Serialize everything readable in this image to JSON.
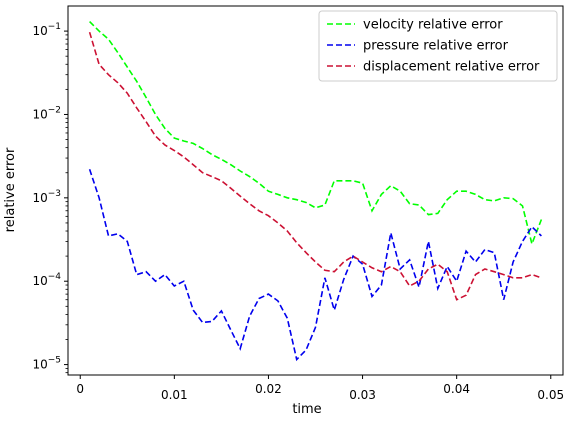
{
  "chart_data": {
    "type": "line",
    "title": "",
    "xlabel": "time",
    "ylabel": "relative error",
    "xscale": "linear",
    "yscale": "log",
    "xlim": [
      -0.0013,
      0.0513
    ],
    "ylim": [
      7.5e-06,
      0.2
    ],
    "grid": false,
    "legend_position": "top-right",
    "x_ticks": [
      {
        "value": 0,
        "label": "0"
      },
      {
        "value": 0.01,
        "label": "0.01"
      },
      {
        "value": 0.02,
        "label": "0.02"
      },
      {
        "value": 0.03,
        "label": "0.03"
      },
      {
        "value": 0.04,
        "label": "0.04"
      },
      {
        "value": 0.05,
        "label": "0.05"
      }
    ],
    "y_ticks": [
      {
        "value": 0.1,
        "base": "10",
        "exp": "−1"
      },
      {
        "value": 0.01,
        "base": "10",
        "exp": "−2"
      },
      {
        "value": 0.001,
        "base": "10",
        "exp": "−3"
      },
      {
        "value": 0.0001,
        "base": "10",
        "exp": "−4"
      },
      {
        "value": 1e-05,
        "base": "10",
        "exp": "−5"
      }
    ],
    "x": [
      0.001,
      0.002,
      0.003,
      0.004,
      0.005,
      0.006,
      0.007,
      0.008,
      0.009,
      0.01,
      0.011,
      0.012,
      0.013,
      0.014,
      0.015,
      0.016,
      0.017,
      0.018,
      0.019,
      0.02,
      0.021,
      0.022,
      0.023,
      0.024,
      0.025,
      0.026,
      0.027,
      0.028,
      0.029,
      0.03,
      0.031,
      0.032,
      0.033,
      0.034,
      0.035,
      0.036,
      0.037,
      0.038,
      0.039,
      0.04,
      0.041,
      0.042,
      0.043,
      0.044,
      0.045,
      0.046,
      0.047,
      0.048,
      0.049
    ],
    "series": [
      {
        "name": "velocity relative error",
        "color": "#00ff00",
        "values": [
          0.13,
          0.1,
          0.08,
          0.055,
          0.037,
          0.025,
          0.016,
          0.01,
          0.0068,
          0.0052,
          0.0048,
          0.0045,
          0.0039,
          0.0033,
          0.0029,
          0.0025,
          0.0021,
          0.0018,
          0.0015,
          0.0012,
          0.0011,
          0.001,
          0.00095,
          0.00088,
          0.00076,
          0.00082,
          0.0016,
          0.0016,
          0.0016,
          0.0015,
          0.0007,
          0.0011,
          0.0014,
          0.0012,
          0.00085,
          0.00082,
          0.00063,
          0.00065,
          0.00095,
          0.0012,
          0.0012,
          0.0011,
          0.00095,
          0.00092,
          0.001,
          0.00098,
          0.0008,
          0.00028,
          0.00055
        ]
      },
      {
        "name": "pressure relative error",
        "color": "#0000ee",
        "values": [
          0.0022,
          0.001,
          0.00035,
          0.00037,
          0.0003,
          0.00012,
          0.00013,
          0.0001,
          0.00012,
          8.75e-05,
          0.0001,
          4.5e-05,
          3.2e-05,
          3.3e-05,
          4.4e-05,
          2.6e-05,
          1.55e-05,
          3.8e-05,
          6.2e-05,
          7e-05,
          5.8e-05,
          3.6e-05,
          1.15e-05,
          1.5e-05,
          2.8e-05,
          0.00011,
          4.5e-05,
          0.000105,
          0.0002,
          0.00016,
          6.55e-05,
          9e-05,
          0.00038,
          0.00014,
          0.00018,
          8.5e-05,
          0.0003,
          8.2e-05,
          0.00015,
          0.0001,
          0.00023,
          0.00017,
          0.00024,
          0.00022,
          6e-05,
          0.00017,
          0.0003,
          0.00045,
          0.00035
        ]
      },
      {
        "name": "displacement relative error",
        "color": "#cc1133",
        "values": [
          0.097,
          0.04,
          0.03,
          0.024,
          0.018,
          0.012,
          0.0082,
          0.0055,
          0.0043,
          0.0037,
          0.0031,
          0.0025,
          0.002,
          0.0018,
          0.0016,
          0.0013,
          0.00105,
          0.00085,
          0.0007,
          0.00061,
          0.0005,
          0.0004,
          0.00029,
          0.00022,
          0.00017,
          0.000135,
          0.00013,
          0.00017,
          0.0002,
          0.00017,
          0.000145,
          0.00013,
          0.00015,
          0.00013,
          8.75e-05,
          0.0001,
          0.00014,
          0.00016,
          0.00013,
          6e-05,
          6.8e-05,
          0.00012,
          0.00014,
          0.00013,
          0.00012,
          0.00011,
          0.00011,
          0.00012,
          0.00011
        ]
      }
    ]
  }
}
